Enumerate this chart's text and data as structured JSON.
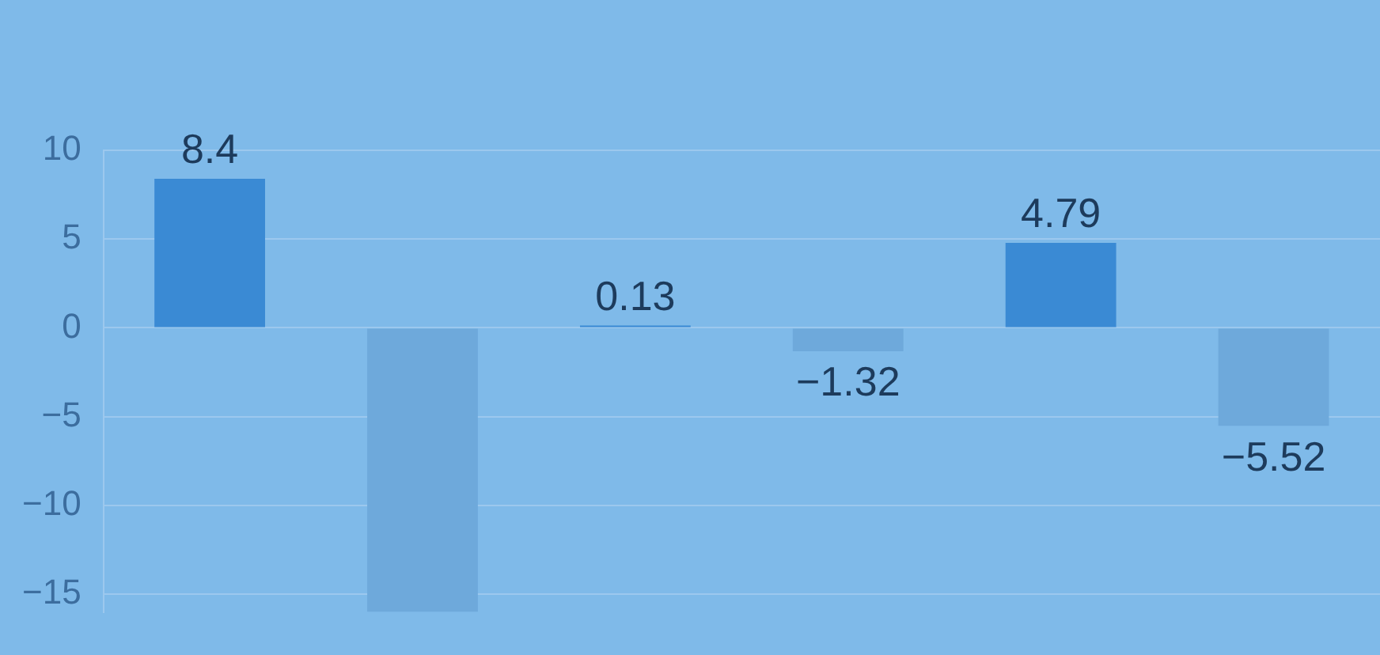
{
  "chart_data": {
    "type": "bar",
    "categories": [
      null,
      null,
      null
    ],
    "series": [
      {
        "color": "#3a8ad4",
        "values": [
          8.4,
          0.13,
          4.79
        ],
        "value_labels": [
          "8.4",
          "0.13",
          "4.79"
        ]
      },
      {
        "color": "#6ea9db",
        "values": [
          -16,
          -1.32,
          -5.52
        ],
        "value_labels": [
          null,
          "−1.32",
          "−5.52"
        ]
      }
    ],
    "ylim": [
      -16,
      10
    ],
    "yticks": [
      10,
      5,
      0,
      {
        "value": -5,
        "label": "−5"
      },
      {
        "value": -10,
        "label": "−10"
      },
      {
        "value": -15,
        "label": "−15"
      }
    ],
    "grid": "y",
    "legend": false,
    "tick_labels": "y"
  }
}
